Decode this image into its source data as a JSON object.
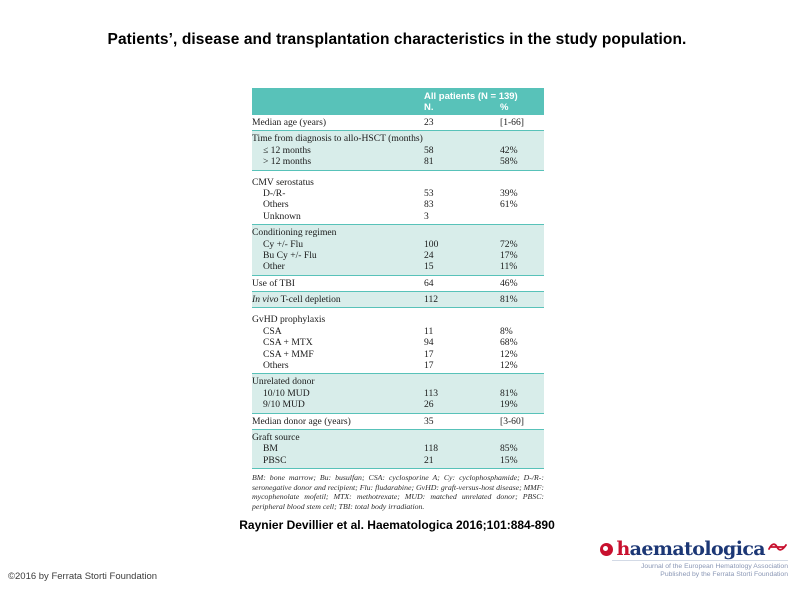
{
  "slide": {
    "title": "Patients’, disease and transplantation characteristics in the study population.",
    "citation": "Raynier Devillier et al. Haematologica 2016;101:884-890",
    "copyright": "©2016 by Ferrata Storti Foundation"
  },
  "table": {
    "header": {
      "span_label": "All patients (N = 139)",
      "col_n": "N.",
      "col_pct": "%"
    },
    "bands": [
      {
        "shade": false,
        "rows": [
          {
            "label": "Median age (years)",
            "n": "23",
            "pct": "[1-66]"
          }
        ]
      },
      {
        "shade": true,
        "rows": [
          {
            "label": "Time from diagnosis to allo-HSCT (months)",
            "group": true
          },
          {
            "label": "≤ 12 months",
            "indent": true,
            "n": "58",
            "pct": "42%"
          },
          {
            "label": "> 12 months",
            "indent": true,
            "n": "81",
            "pct": "58%"
          }
        ]
      },
      {
        "shade": false,
        "rows": [
          {
            "label": "CMV serostatus",
            "group": true
          },
          {
            "label": "D-/R-",
            "indent": true,
            "n": "53",
            "pct": "39%"
          },
          {
            "label": "Others",
            "indent": true,
            "n": "83",
            "pct": "61%"
          },
          {
            "label": "Unknown",
            "indent": true,
            "n": "3",
            "pct": ""
          }
        ]
      },
      {
        "shade": true,
        "rows": [
          {
            "label": "Conditioning regimen",
            "group": true
          },
          {
            "label": "Cy +/- Flu",
            "indent": true,
            "n": "100",
            "pct": "72%"
          },
          {
            "label": "Bu Cy +/- Flu",
            "indent": true,
            "n": "24",
            "pct": "17%"
          },
          {
            "label": "Other",
            "indent": true,
            "n": "15",
            "pct": "11%"
          }
        ]
      },
      {
        "shade": false,
        "rows": [
          {
            "label": "Use of TBI",
            "n": "64",
            "pct": "46%"
          }
        ]
      },
      {
        "shade": true,
        "rows": [
          {
            "italic": "In vivo",
            "label": " T-cell depletion",
            "n": "112",
            "pct": "81%"
          }
        ]
      },
      {
        "shade": false,
        "rows": [
          {
            "label": "GvHD prophylaxis",
            "group": true
          },
          {
            "label": "CSA",
            "indent": true,
            "n": "11",
            "pct": "8%"
          },
          {
            "label": "CSA + MTX",
            "indent": true,
            "n": "94",
            "pct": "68%"
          },
          {
            "label": "CSA + MMF",
            "indent": true,
            "n": "17",
            "pct": "12%"
          },
          {
            "label": "Others",
            "indent": true,
            "n": "17",
            "pct": "12%"
          }
        ]
      },
      {
        "shade": true,
        "rows": [
          {
            "label": "Unrelated donor",
            "group": true
          },
          {
            "label": "10/10 MUD",
            "indent": true,
            "n": "113",
            "pct": "81%"
          },
          {
            "label": "9/10 MUD",
            "indent": true,
            "n": "26",
            "pct": "19%"
          }
        ]
      },
      {
        "shade": false,
        "rows": [
          {
            "label": "Median donor age (years)",
            "n": "35",
            "pct": "[3-60]"
          }
        ]
      },
      {
        "shade": true,
        "rows": [
          {
            "label": "Graft source",
            "group": true
          },
          {
            "label": "BM",
            "indent": true,
            "n": "118",
            "pct": "85%"
          },
          {
            "label": "PBSC",
            "indent": true,
            "n": "21",
            "pct": "15%"
          }
        ]
      }
    ],
    "footnote": "BM: bone marrow; Bu: busulfan; CSA: cyclosporine A; Cy: cyclophosphamide; D-/R-: seronegative donor and recipient; Flu: fludarabine; GvHD: graft-versus-host disease; MMF: mycophenolate mofetil; MTX: methotrexate; MUD: matched unrelated donor; PBSC: peripheral blood stem cell; TBI: total body irradiation."
  },
  "logo": {
    "word_first": "h",
    "word_rest": "aematologica",
    "tagline1": "Journal of the European Hematology Association",
    "tagline2": "Published by the Ferrata Storti Foundation"
  },
  "colors": {
    "header_teal": "#58c2b9",
    "band_teal": "#d8edea",
    "logo_red": "#c8102e",
    "logo_navy": "#1c3775"
  }
}
